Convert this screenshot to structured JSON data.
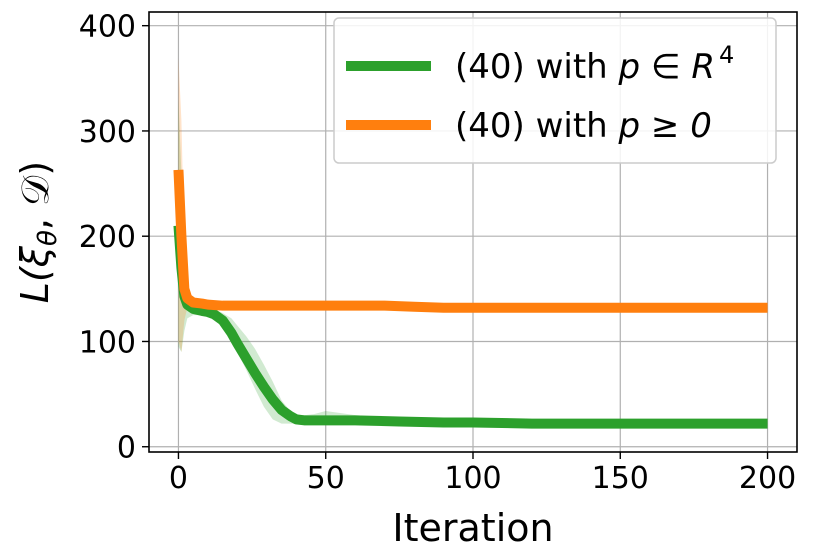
{
  "chart_data": {
    "type": "line",
    "title": "",
    "xlabel": "Iteration",
    "ylabel": "L(ξ_θ, 𝒟)",
    "xlim": [
      -10,
      210
    ],
    "ylim": [
      -5,
      413
    ],
    "xticks": [
      0,
      50,
      100,
      150,
      200
    ],
    "yticks": [
      0,
      100,
      200,
      300,
      400
    ],
    "grid": true,
    "legend_position": "top-right",
    "series": [
      {
        "name": "(40) with p ∈ R⁴",
        "legend_prefix": "(40) with ",
        "legend_math": "p ∈ R",
        "legend_sup": "4",
        "color": "#2ca02c",
        "x": [
          0,
          1,
          2,
          3,
          5,
          8,
          10,
          12,
          15,
          18,
          20,
          23,
          26,
          29,
          32,
          35,
          38,
          40,
          43,
          46,
          50,
          60,
          75,
          90,
          100,
          120,
          150,
          175,
          200
        ],
        "values": [
          210,
          170,
          143,
          135,
          131,
          129,
          128,
          126,
          120,
          108,
          98,
          84,
          70,
          57,
          45,
          35,
          29,
          26,
          25,
          25,
          25,
          25,
          24,
          23,
          23,
          22,
          22,
          22,
          22
        ],
        "band_lower": [
          95,
          90,
          110,
          122,
          125,
          125,
          124,
          122,
          115,
          102,
          90,
          73,
          55,
          38,
          26,
          22,
          22,
          22,
          22,
          22,
          22,
          21,
          21,
          20,
          20,
          20,
          20,
          20,
          20
        ],
        "band_upper": [
          330,
          260,
          180,
          150,
          137,
          134,
          133,
          131,
          127,
          122,
          115,
          105,
          93,
          78,
          62,
          44,
          34,
          30,
          30,
          31,
          34,
          30,
          27,
          25,
          25,
          24,
          24,
          24,
          24
        ]
      },
      {
        "name": "(40) with p ≥ 0",
        "legend_prefix": "(40) with ",
        "legend_math": "p ≥ 0",
        "legend_sup": "",
        "color": "#ff7f0e",
        "x": [
          0,
          1,
          2,
          3,
          5,
          8,
          10,
          15,
          20,
          30,
          50,
          70,
          80,
          90,
          100,
          150,
          200
        ],
        "values": [
          263,
          200,
          150,
          141,
          137,
          136,
          135,
          134,
          134,
          134,
          134,
          134,
          133,
          132,
          132,
          132,
          132
        ],
        "band_lower": [
          100,
          90,
          120,
          132,
          134,
          134,
          133,
          133,
          133,
          133,
          133,
          133,
          132,
          131,
          131,
          131,
          131
        ],
        "band_upper": [
          370,
          310,
          190,
          150,
          140,
          138,
          137,
          135,
          135,
          135,
          135,
          135,
          134,
          133,
          133,
          133,
          133
        ]
      }
    ]
  }
}
